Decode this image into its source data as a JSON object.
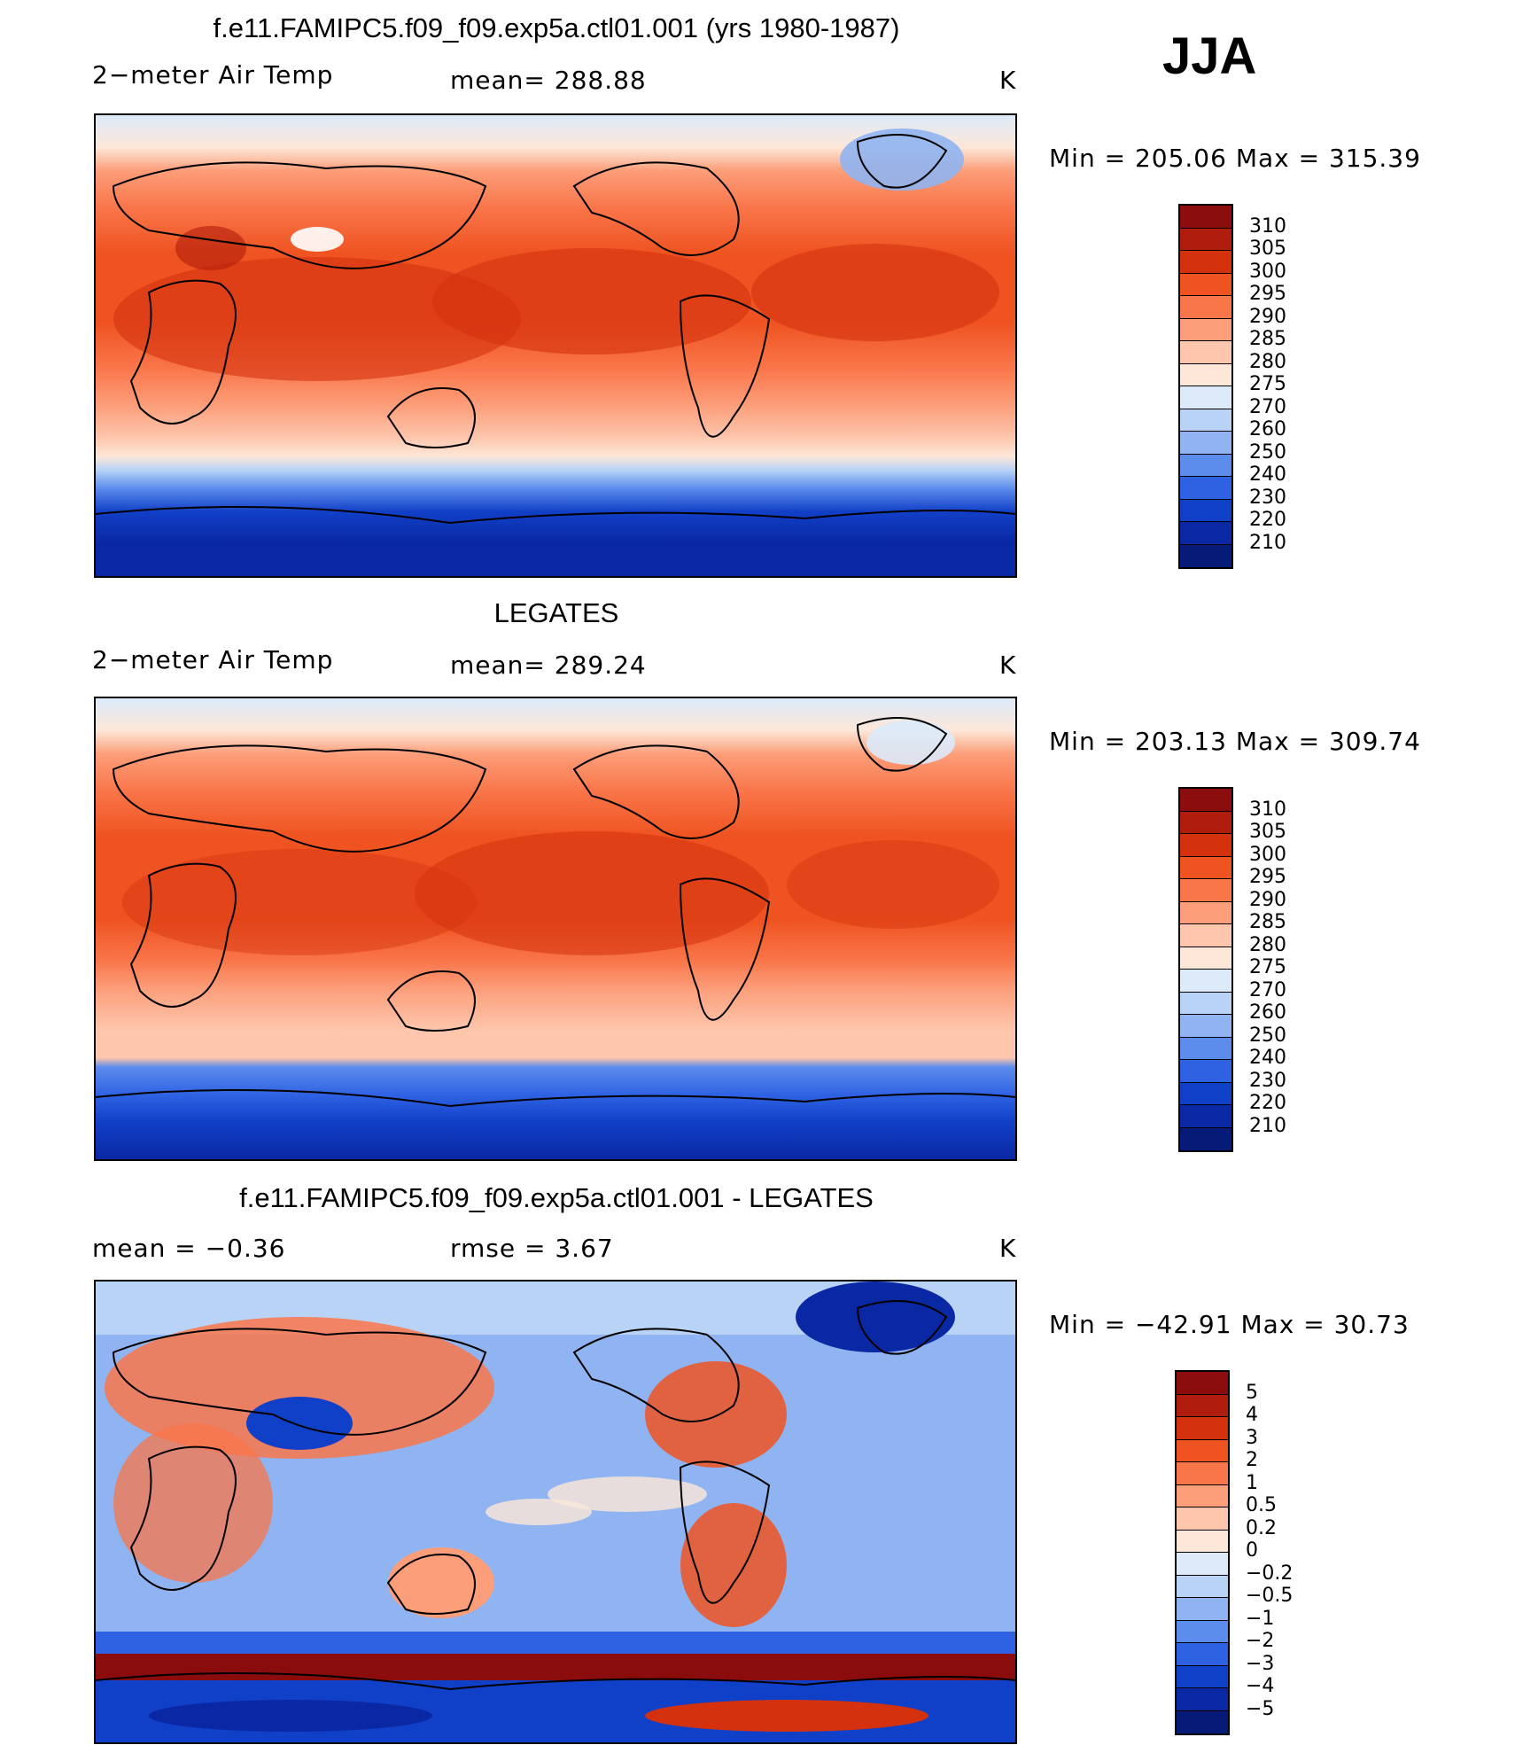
{
  "season": "JJA",
  "panels": [
    {
      "title": "f.e11.FAMIPC5.f09_f09.exp5a.ctl01.001 (yrs 1980-1987)",
      "left_label": "2−meter Air Temp",
      "mid_label": "mean=  288.88",
      "unit": "K",
      "minmax": "Min  =  205.06  Max  =  315.39",
      "colorbar": {
        "labels": [
          "310",
          "305",
          "300",
          "295",
          "290",
          "285",
          "280",
          "275",
          "270",
          "260",
          "250",
          "240",
          "230",
          "220",
          "210"
        ],
        "colors": [
          "#8b0c0c",
          "#b01d0c",
          "#d4320f",
          "#ef5321",
          "#f9764a",
          "#fc9e7a",
          "#fdc6ad",
          "#fde7d8",
          "#dceafa",
          "#b8d3f6",
          "#8fb4f1",
          "#5c8cec",
          "#2f62e3",
          "#1140c8",
          "#0a28a3",
          "#061a78"
        ]
      }
    },
    {
      "title": "LEGATES",
      "left_label": "2−meter Air Temp",
      "mid_label": "mean=  289.24",
      "unit": "K",
      "minmax": "Min  =  203.13  Max  =  309.74",
      "colorbar": {
        "labels": [
          "310",
          "305",
          "300",
          "295",
          "290",
          "285",
          "280",
          "275",
          "270",
          "260",
          "250",
          "240",
          "230",
          "220",
          "210"
        ],
        "colors": [
          "#8b0c0c",
          "#b01d0c",
          "#d4320f",
          "#ef5321",
          "#f9764a",
          "#fc9e7a",
          "#fdc6ad",
          "#fde7d8",
          "#dceafa",
          "#b8d3f6",
          "#8fb4f1",
          "#5c8cec",
          "#2f62e3",
          "#1140c8",
          "#0a28a3",
          "#061a78"
        ]
      }
    },
    {
      "title": "f.e11.FAMIPC5.f09_f09.exp5a.ctl01.001 - LEGATES",
      "left_label": "mean  =    −0.36",
      "mid_label": "rmse  =     3.67",
      "unit": "K",
      "minmax": "Min  =  −42.91  Max  =    30.73",
      "colorbar": {
        "labels": [
          "5",
          "4",
          "3",
          "2",
          "1",
          "0.5",
          "0.2",
          "0",
          "−0.2",
          "−0.5",
          "−1",
          "−2",
          "−3",
          "−4",
          "−5"
        ],
        "colors": [
          "#8b0c0c",
          "#b01d0c",
          "#d4320f",
          "#ef5321",
          "#f9764a",
          "#fc9e7a",
          "#fdc6ad",
          "#fde7d8",
          "#dceafa",
          "#b8d3f6",
          "#8fb4f1",
          "#5c8cec",
          "#2f62e3",
          "#1140c8",
          "#0a28a3",
          "#061a78"
        ]
      }
    }
  ]
}
